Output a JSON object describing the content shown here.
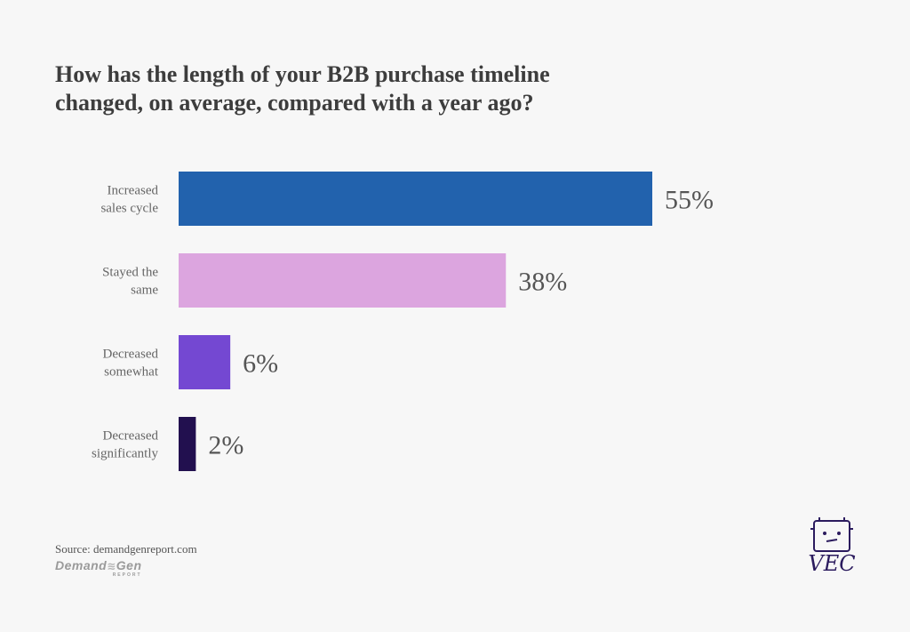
{
  "title_lines": [
    "How has the length of your B2B purchase timeline",
    "changed, on average, compared with a year ago?"
  ],
  "chart_data": {
    "type": "bar",
    "orientation": "horizontal",
    "categories": [
      [
        "Increased",
        "sales cycle"
      ],
      [
        "Stayed the",
        "same"
      ],
      [
        "Decreased",
        "somewhat"
      ],
      [
        "Decreased",
        "significantly"
      ]
    ],
    "values": [
      55,
      38,
      6,
      2
    ],
    "value_labels": [
      "55%",
      "38%",
      "6%",
      "2%"
    ],
    "colors": [
      "#2262ad",
      "#dca5df",
      "#7448d2",
      "#22104f"
    ],
    "xlim": [
      0,
      55
    ],
    "grid": false,
    "legend": "none"
  },
  "source": "Source: demandgenreport.com",
  "logos": {
    "demandgen": {
      "word1": "Demand",
      "word2": "Gen",
      "sub": "REPORT"
    },
    "vec": "VEC"
  }
}
